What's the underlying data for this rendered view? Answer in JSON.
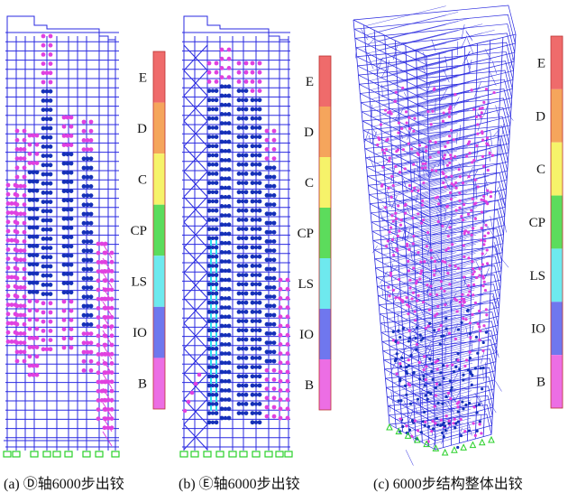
{
  "figure": {
    "panels": [
      {
        "id": "a",
        "caption": "(a) Ⓓ轴6000步出铰",
        "view": "2D frame elevation, axis D",
        "levels": [
          "E",
          "D",
          "C",
          "CP",
          "LS",
          "IO",
          "B"
        ]
      },
      {
        "id": "b",
        "caption": "(b) Ⓔ轴6000步出铰",
        "view": "2D frame elevation, axis E",
        "levels": [
          "E",
          "D",
          "C",
          "CP",
          "LS",
          "IO",
          "B"
        ]
      },
      {
        "id": "c",
        "caption": "(c) 6000步结构整体出铰",
        "view": "3D whole structure",
        "levels": [
          "E",
          "D",
          "C",
          "CP",
          "LS",
          "IO",
          "B"
        ]
      }
    ],
    "legend_colors": {
      "E": "#ef6b6b",
      "D": "#f5a55c",
      "C": "#f6f36a",
      "CP": "#5cdc5c",
      "LS": "#6ee9ee",
      "IO": "#6f77ee",
      "B": "#ec6ee4"
    },
    "colors": {
      "frame": "#2a2ae0",
      "hinge_primary": "#1530b8",
      "hinge_secondary": "#e040e0",
      "ls_column": "#30e0f0",
      "support": "#2ad02a"
    }
  }
}
